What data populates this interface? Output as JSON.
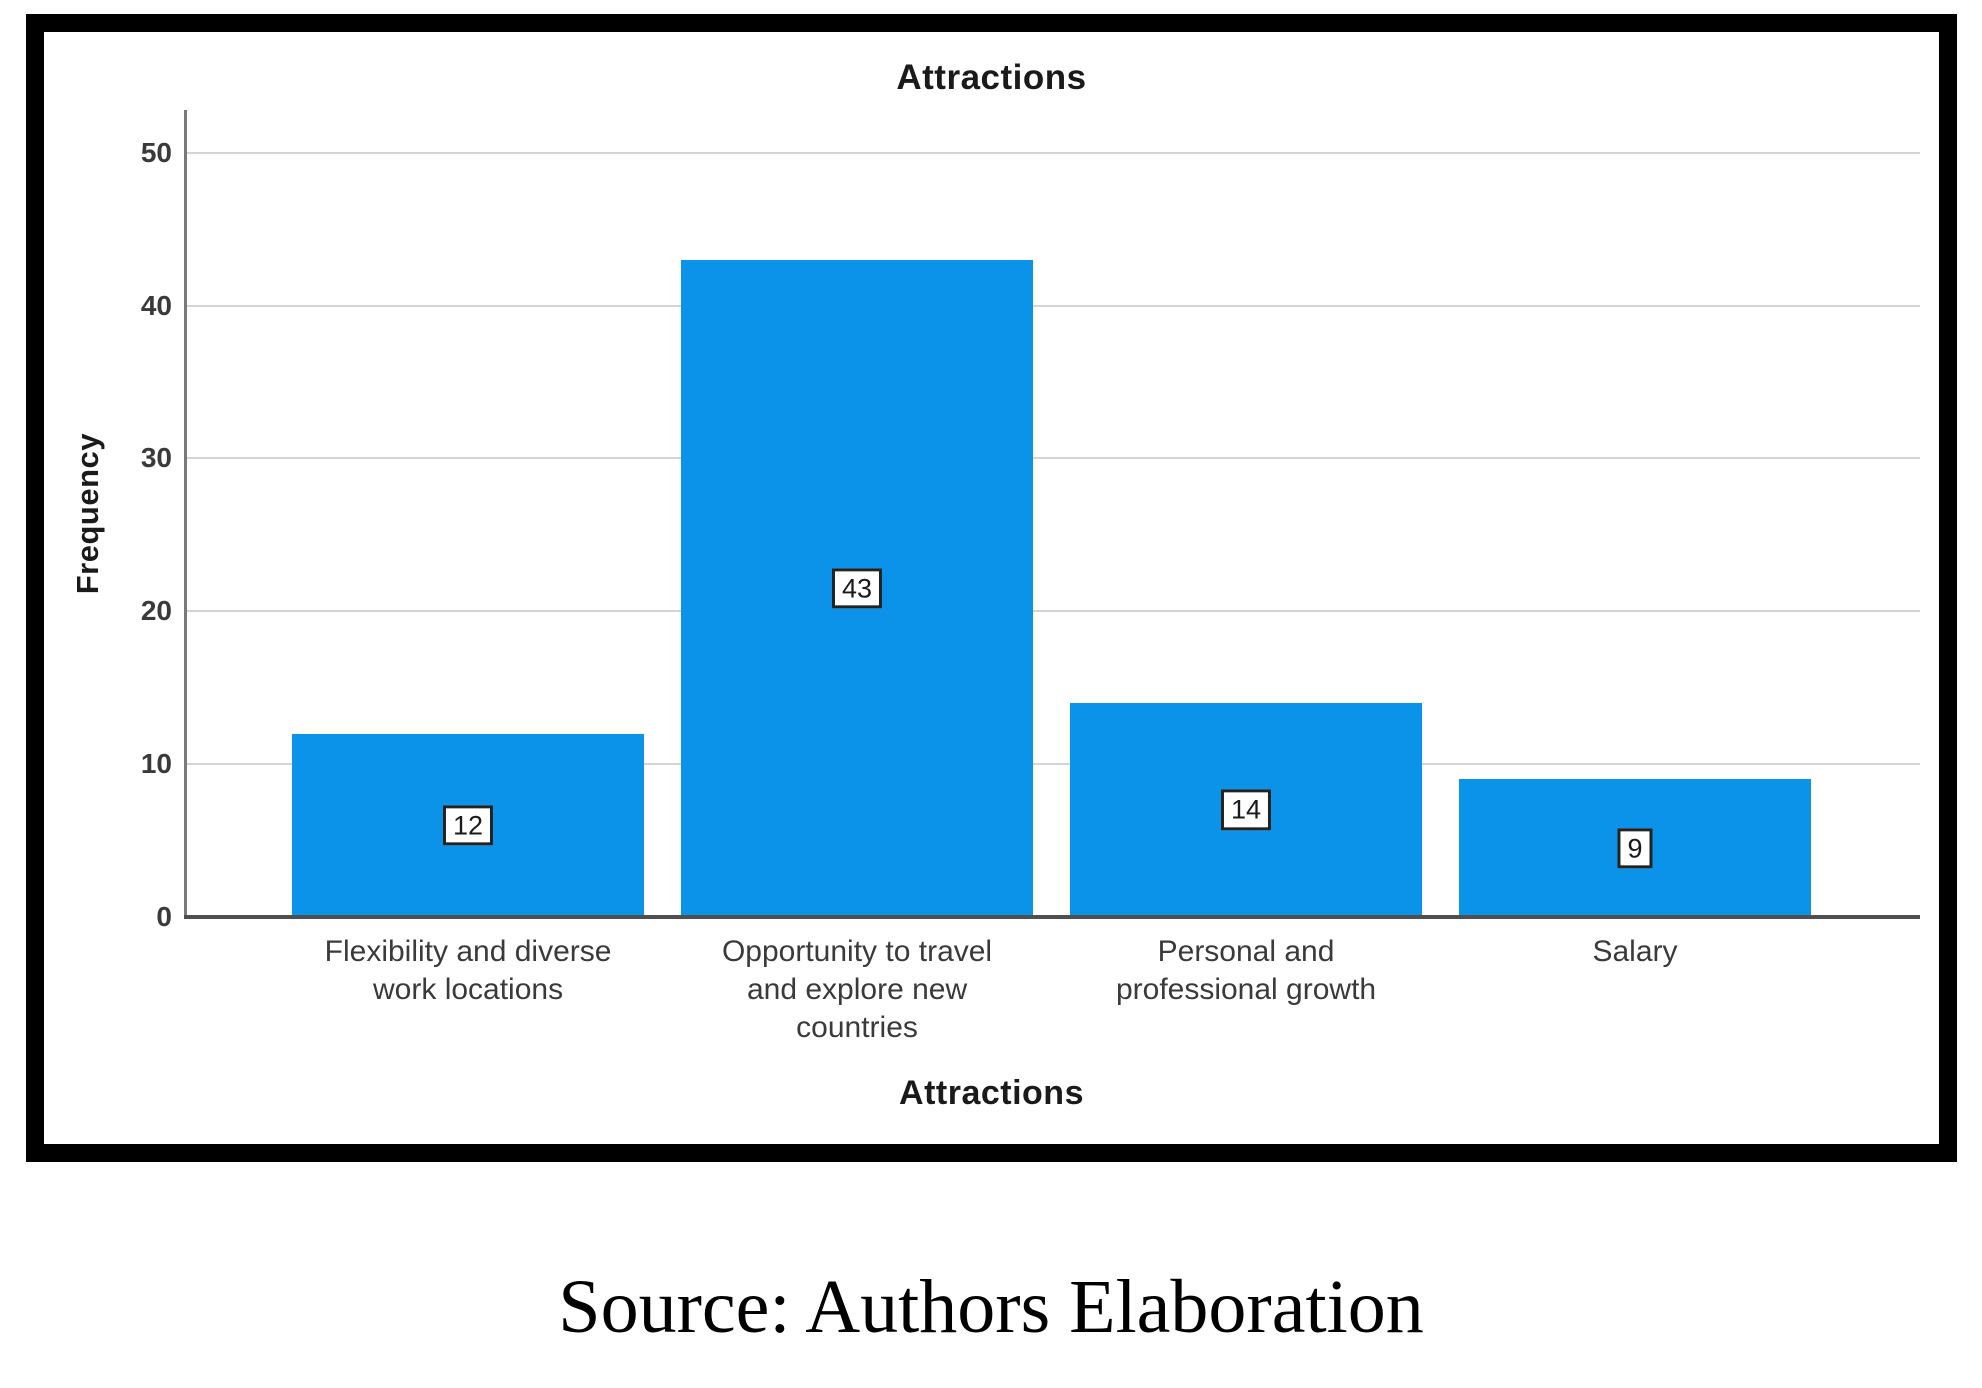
{
  "chart_data": {
    "type": "bar",
    "title": "Attractions",
    "xlabel": "Attractions",
    "ylabel": "Frequency",
    "categories": [
      "Flexibility and diverse work locations",
      "Opportunity to travel and explore new countries",
      "Personal and professional growth",
      "Salary"
    ],
    "values": [
      12,
      43,
      14,
      9
    ],
    "data_labels": [
      "12",
      "43",
      "14",
      "9"
    ],
    "y_ticks": [
      0,
      10,
      20,
      30,
      40,
      50
    ],
    "ylim": [
      0,
      50
    ],
    "grid": "horizontal",
    "legend": "none",
    "bar_color": "#0a93e8"
  },
  "source_note": "Source: Authors Elaboration",
  "colors": {
    "bar": "#0a93e8",
    "gridline": "#d4d4d4",
    "y_axis_line": "#7a7a7a",
    "baseline": "#4f4f4f",
    "frame": "#000000",
    "text": "#1a1a1a",
    "label_box_border": "#222222",
    "label_box_bg": "#ffffff"
  }
}
